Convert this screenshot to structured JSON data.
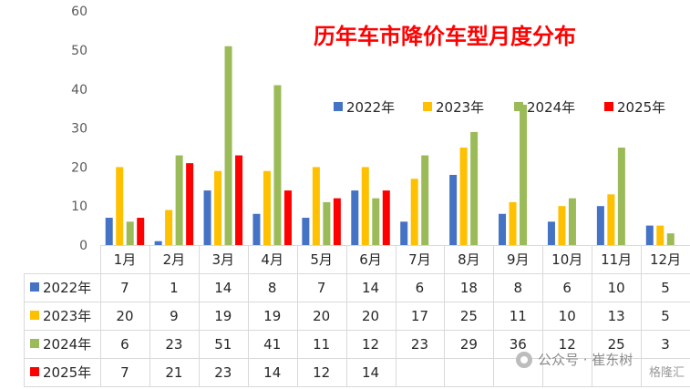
{
  "chart_data": {
    "type": "bar",
    "title": "历年车市降价车型月度分布",
    "categories": [
      "1月",
      "2月",
      "3月",
      "4月",
      "5月",
      "6月",
      "7月",
      "8月",
      "9月",
      "10月",
      "11月",
      "12月"
    ],
    "series": [
      {
        "name": "2022年",
        "color": "#4472C4",
        "values": [
          7,
          1,
          14,
          8,
          7,
          14,
          6,
          18,
          8,
          6,
          10,
          5
        ]
      },
      {
        "name": "2023年",
        "color": "#FFC000",
        "values": [
          20,
          9,
          19,
          19,
          20,
          20,
          17,
          25,
          11,
          10,
          13,
          5
        ]
      },
      {
        "name": "2024年",
        "color": "#9BBB59",
        "values": [
          6,
          23,
          51,
          41,
          11,
          12,
          23,
          29,
          36,
          12,
          25,
          3
        ]
      },
      {
        "name": "2025年",
        "color": "#FF0000",
        "values": [
          7,
          21,
          23,
          14,
          12,
          14,
          null,
          null,
          null,
          null,
          null,
          null
        ]
      }
    ],
    "ylim": [
      0,
      60
    ],
    "yticks": [
      0,
      10,
      20,
      30,
      40,
      50,
      60
    ],
    "legend_position": "top-right",
    "grid": false,
    "title_color": "#FF0000"
  },
  "watermark": {
    "text": "公众号 · 崔东树",
    "badge": "格隆汇"
  }
}
